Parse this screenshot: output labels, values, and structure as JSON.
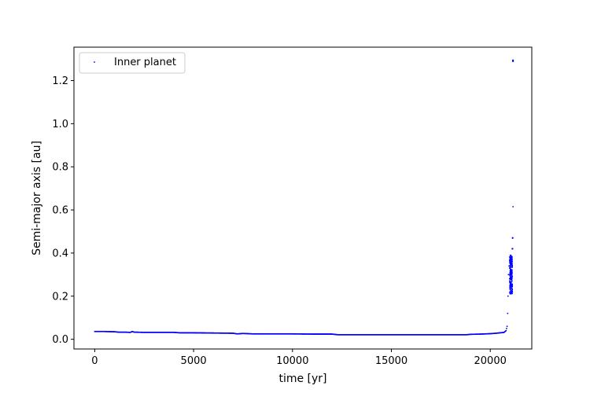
{
  "chart_data": {
    "type": "scatter",
    "xlabel": "time [yr]",
    "ylabel": "Semi-major axis [au]",
    "xlim": [
      -1050,
      22100
    ],
    "ylim": [
      -0.045,
      1.355
    ],
    "xticks": [
      0,
      5000,
      10000,
      15000,
      20000
    ],
    "yticks": [
      0.0,
      0.2,
      0.4,
      0.6,
      0.8,
      1.0,
      1.2
    ],
    "xtick_labels": [
      "0",
      "5000",
      "10000",
      "15000",
      "20000"
    ],
    "ytick_labels": [
      "0.0",
      "0.2",
      "0.4",
      "0.6",
      "0.8",
      "1.0",
      "1.2"
    ],
    "grid": false,
    "legend_position": "top-left",
    "series": [
      {
        "name": "Inner planet",
        "color": "#0000ff",
        "marker": "point",
        "x": [
          0,
          500,
          1000,
          1200,
          1500,
          1800,
          1900,
          2000,
          2500,
          3000,
          3500,
          4000,
          4300,
          5000,
          6000,
          7000,
          7200,
          7500,
          8000,
          9000,
          10000,
          11000,
          12000,
          12300,
          13000,
          14000,
          15000,
          16000,
          17000,
          18000,
          18800,
          19000,
          19500,
          20000,
          20300,
          20500,
          20700,
          20800,
          20850,
          20880,
          20900,
          20920,
          20950,
          20980,
          21000,
          21020,
          21040,
          21060,
          21080,
          21100,
          21120,
          21130,
          21140,
          21150
        ],
        "y": [
          0.036,
          0.036,
          0.035,
          0.033,
          0.033,
          0.032,
          0.036,
          0.033,
          0.032,
          0.032,
          0.032,
          0.032,
          0.03,
          0.03,
          0.029,
          0.028,
          0.025,
          0.027,
          0.025,
          0.025,
          0.025,
          0.024,
          0.024,
          0.021,
          0.021,
          0.021,
          0.021,
          0.021,
          0.021,
          0.021,
          0.021,
          0.023,
          0.024,
          0.026,
          0.028,
          0.03,
          0.032,
          0.04,
          0.06,
          0.12,
          0.2,
          0.3,
          0.34,
          0.33,
          0.36,
          0.32,
          0.37,
          0.29,
          0.38,
          0.25,
          0.22,
          0.42,
          0.47,
          0.615
        ]
      }
    ],
    "outliers": [
      {
        "x": 21150,
        "y": 1.292
      },
      {
        "x": 21150,
        "y": 1.294
      },
      {
        "x": 21150,
        "y": 1.29
      },
      {
        "x": 21130,
        "y": 0.47
      },
      {
        "x": 21120,
        "y": 0.42
      }
    ]
  }
}
